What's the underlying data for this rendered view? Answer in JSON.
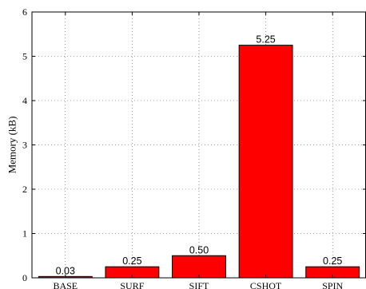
{
  "chart_data": {
    "type": "bar",
    "categories": [
      "BASE",
      "SURF",
      "SIFT",
      "CSHOT",
      "SPIN"
    ],
    "values": [
      0.03,
      0.25,
      0.5,
      5.25,
      0.25
    ],
    "data_labels": [
      "0.03",
      "0.25",
      "0.50",
      "5.25",
      "0.25"
    ],
    "title": "",
    "xlabel": "",
    "ylabel": "Memory (kB)",
    "ylim": [
      0,
      6
    ],
    "yticks": [
      0,
      1,
      2,
      3,
      4,
      5,
      6
    ],
    "grid": true,
    "bar_color": "#ff0000"
  }
}
